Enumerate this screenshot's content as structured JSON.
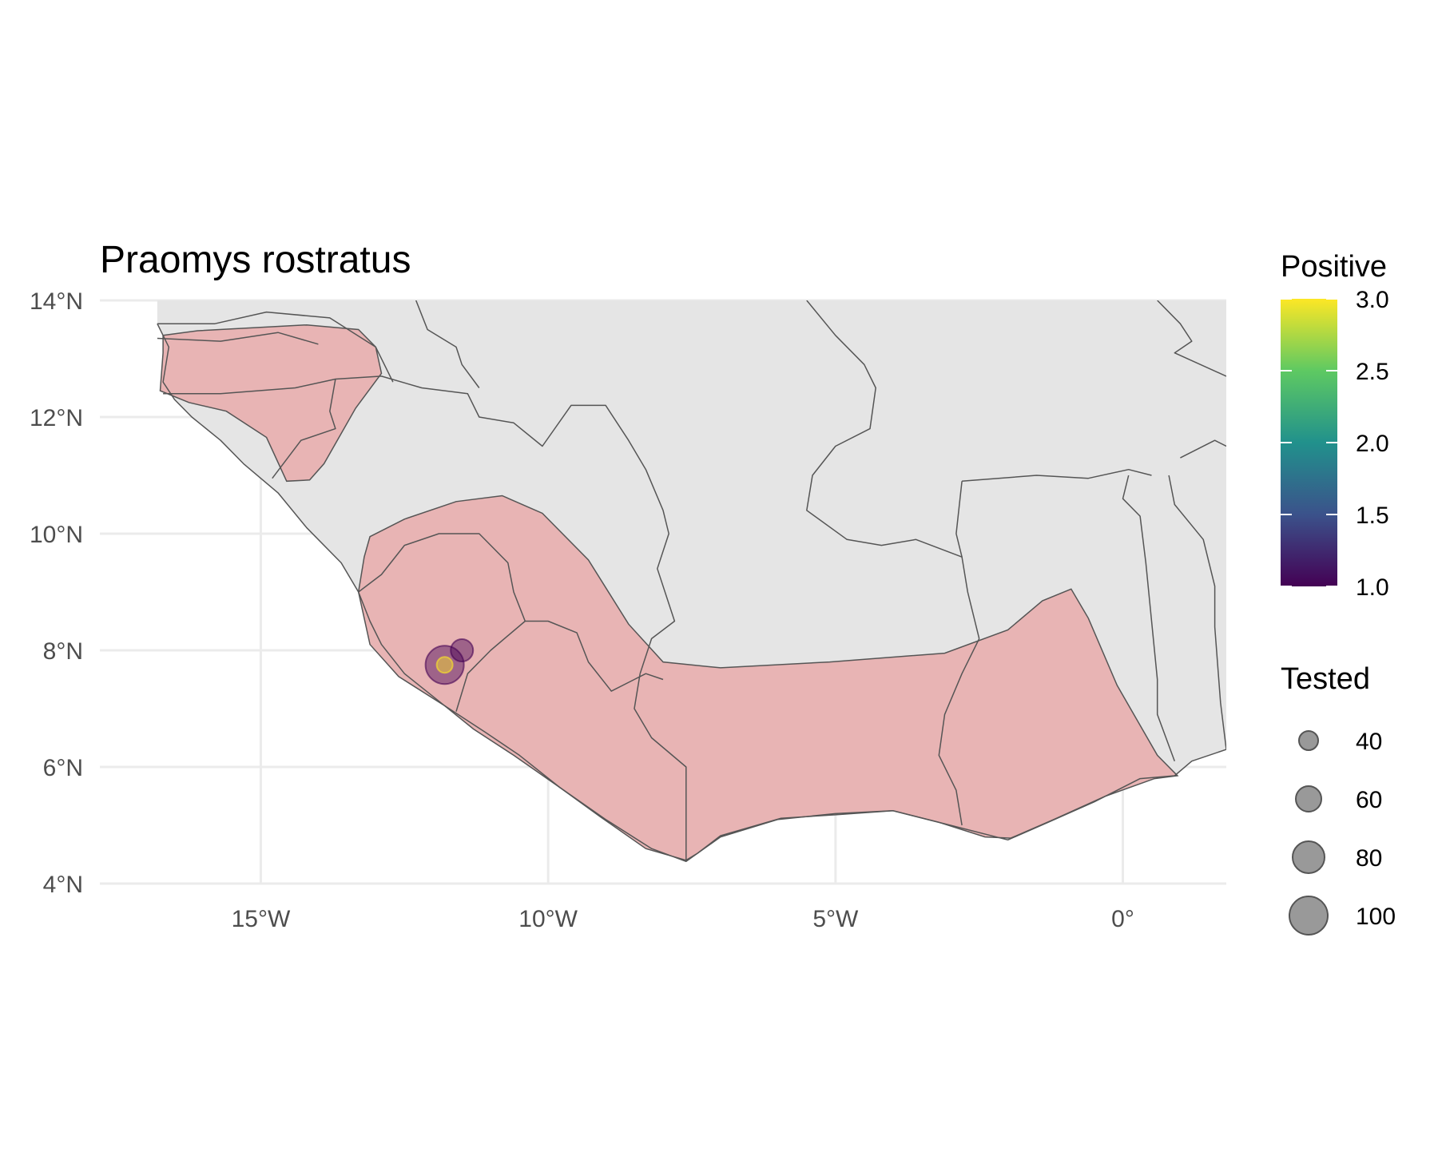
{
  "chart_data": {
    "type": "map",
    "title": "Praomys rostratus",
    "x_axis": {
      "range": [
        -17.8,
        1.8
      ],
      "ticks": [
        {
          "value": -15,
          "label": "15°W"
        },
        {
          "value": -10,
          "label": "10°W"
        },
        {
          "value": -5,
          "label": "5°W"
        },
        {
          "value": 0,
          "label": "0°"
        }
      ]
    },
    "y_axis": {
      "range": [
        4,
        14
      ],
      "ticks": [
        {
          "value": 14,
          "label": "14°N"
        },
        {
          "value": 12,
          "label": "12°N"
        },
        {
          "value": 10,
          "label": "10°N"
        },
        {
          "value": 8,
          "label": "8°N"
        },
        {
          "value": 6,
          "label": "6°N"
        },
        {
          "value": 4,
          "label": "4°N"
        }
      ]
    },
    "grid": true,
    "land_color": "#e5e5e5",
    "border_color": "#555555",
    "range_color": "#e8b4b4",
    "species_range": [
      {
        "name": "west-guinea-senegal",
        "points": [
          [
            -16.7,
            13.4
          ],
          [
            -16.1,
            13.48
          ],
          [
            -14.2,
            13.58
          ],
          [
            -13.3,
            13.5
          ],
          [
            -13.0,
            13.2
          ],
          [
            -12.9,
            12.75
          ],
          [
            -13.35,
            12.15
          ],
          [
            -13.9,
            11.2
          ],
          [
            -14.15,
            10.92
          ],
          [
            -14.55,
            10.9
          ],
          [
            -14.9,
            11.65
          ],
          [
            -15.6,
            12.1
          ],
          [
            -16.25,
            12.25
          ],
          [
            -16.75,
            12.45
          ],
          [
            -16.7,
            13.1
          ]
        ]
      },
      {
        "name": "upper-guinea-forest",
        "points": [
          [
            -13.1,
            9.95
          ],
          [
            -12.5,
            10.25
          ],
          [
            -11.6,
            10.55
          ],
          [
            -10.8,
            10.65
          ],
          [
            -10.1,
            10.35
          ],
          [
            -9.3,
            9.55
          ],
          [
            -8.6,
            8.45
          ],
          [
            -8.0,
            7.8
          ],
          [
            -7.0,
            7.7
          ],
          [
            -5.1,
            7.8
          ],
          [
            -3.1,
            7.95
          ],
          [
            -2.0,
            8.35
          ],
          [
            -1.4,
            8.85
          ],
          [
            -0.9,
            9.05
          ],
          [
            -0.6,
            8.55
          ],
          [
            -0.1,
            7.4
          ],
          [
            0.6,
            6.2
          ],
          [
            0.95,
            5.85
          ],
          [
            0.55,
            5.8
          ],
          [
            -0.3,
            5.5
          ],
          [
            -1.2,
            5.1
          ],
          [
            -1.95,
            4.78
          ],
          [
            -2.4,
            4.8
          ],
          [
            -3.2,
            5.05
          ],
          [
            -4.0,
            5.25
          ],
          [
            -5.0,
            5.18
          ],
          [
            -5.95,
            5.12
          ],
          [
            -7.0,
            4.82
          ],
          [
            -7.4,
            4.52
          ],
          [
            -7.6,
            4.4
          ],
          [
            -8.3,
            4.6
          ],
          [
            -9.1,
            5.15
          ],
          [
            -9.8,
            5.65
          ],
          [
            -10.6,
            6.2
          ],
          [
            -11.3,
            6.65
          ],
          [
            -11.8,
            7.05
          ],
          [
            -12.6,
            7.55
          ],
          [
            -13.1,
            8.1
          ],
          [
            -13.3,
            9.0
          ],
          [
            -13.2,
            9.6
          ]
        ]
      }
    ],
    "countries": [
      {
        "name": "senegal-gambia-guinea-bissau-coast",
        "points": [
          [
            -16.8,
            13.6
          ],
          [
            -16.6,
            13.2
          ],
          [
            -16.7,
            12.6
          ],
          [
            -16.5,
            12.3
          ],
          [
            -16.2,
            12.0
          ],
          [
            -15.7,
            11.6
          ],
          [
            -15.3,
            11.2
          ],
          [
            -14.7,
            10.7
          ],
          [
            -14.2,
            10.1
          ],
          [
            -13.6,
            9.5
          ],
          [
            -13.3,
            9.0
          ],
          [
            -13.1,
            8.5
          ],
          [
            -12.9,
            8.1
          ],
          [
            -12.5,
            7.6
          ],
          [
            -11.8,
            7.05
          ],
          [
            -11.1,
            6.6
          ],
          [
            -10.5,
            6.2
          ],
          [
            -9.8,
            5.65
          ],
          [
            -9.0,
            5.1
          ],
          [
            -8.2,
            4.6
          ],
          [
            -7.6,
            4.38
          ],
          [
            -7.0,
            4.8
          ],
          [
            -6.0,
            5.1
          ],
          [
            -5.0,
            5.2
          ],
          [
            -4.0,
            5.25
          ],
          [
            -3.0,
            5.0
          ],
          [
            -2.0,
            4.75
          ],
          [
            -1.3,
            5.05
          ],
          [
            -0.5,
            5.4
          ],
          [
            0.3,
            5.8
          ],
          [
            0.9,
            5.85
          ],
          [
            1.2,
            6.1
          ],
          [
            1.8,
            6.3
          ]
        ]
      },
      {
        "name": "gambia-north-border",
        "points": [
          [
            -16.8,
            13.6
          ],
          [
            -15.8,
            13.6
          ],
          [
            -14.9,
            13.8
          ],
          [
            -13.8,
            13.7
          ],
          [
            -13.0,
            13.2
          ],
          [
            -12.7,
            12.6
          ]
        ]
      },
      {
        "name": "gambia-south-border",
        "points": [
          [
            -16.8,
            13.35
          ],
          [
            -15.7,
            13.3
          ],
          [
            -14.7,
            13.45
          ],
          [
            -14.0,
            13.25
          ]
        ]
      },
      {
        "name": "guinea-bissau-north",
        "points": [
          [
            -16.7,
            12.4
          ],
          [
            -15.7,
            12.4
          ],
          [
            -14.4,
            12.5
          ],
          [
            -13.7,
            12.65
          ],
          [
            -12.9,
            12.7
          ]
        ]
      },
      {
        "name": "guinea-bissau-east",
        "points": [
          [
            -13.7,
            12.65
          ],
          [
            -13.8,
            12.1
          ],
          [
            -13.7,
            11.8
          ],
          [
            -14.3,
            11.6
          ],
          [
            -14.8,
            10.95
          ]
        ]
      },
      {
        "name": "senegal-mali-guinea",
        "points": [
          [
            -12.9,
            12.7
          ],
          [
            -12.2,
            12.5
          ],
          [
            -11.4,
            12.4
          ],
          [
            -11.2,
            12.0
          ],
          [
            -10.6,
            11.9
          ],
          [
            -10.1,
            11.5
          ],
          [
            -9.6,
            12.2
          ],
          [
            -9.0,
            12.2
          ],
          [
            -8.6,
            11.6
          ],
          [
            -8.3,
            11.1
          ],
          [
            -8.0,
            10.4
          ],
          [
            -7.9,
            10.0
          ],
          [
            -8.1,
            9.4
          ],
          [
            -7.8,
            8.5
          ],
          [
            -8.2,
            8.2
          ],
          [
            -8.4,
            7.6
          ]
        ]
      },
      {
        "name": "mali-inland-north",
        "points": [
          [
            -12.3,
            14.0
          ],
          [
            -12.1,
            13.5
          ],
          [
            -11.6,
            13.2
          ],
          [
            -11.5,
            12.9
          ],
          [
            -11.2,
            12.5
          ]
        ]
      },
      {
        "name": "mali-burkina",
        "points": [
          [
            -5.5,
            14.0
          ],
          [
            -5.0,
            13.4
          ],
          [
            -4.5,
            12.9
          ],
          [
            -4.3,
            12.5
          ],
          [
            -4.4,
            11.8
          ],
          [
            -5.0,
            11.5
          ],
          [
            -5.4,
            11.0
          ],
          [
            -5.5,
            10.4
          ],
          [
            -4.8,
            9.9
          ],
          [
            -4.2,
            9.8
          ],
          [
            -3.6,
            9.9
          ],
          [
            -2.8,
            9.6
          ],
          [
            -2.7,
            9.0
          ],
          [
            -2.5,
            8.2
          ]
        ]
      },
      {
        "name": "burkina-ghana-north",
        "points": [
          [
            -2.8,
            10.9
          ],
          [
            -1.5,
            11.0
          ],
          [
            -0.6,
            10.95
          ],
          [
            0.1,
            11.1
          ],
          [
            0.5,
            11.0
          ]
        ]
      },
      {
        "name": "ghana-west",
        "points": [
          [
            -2.8,
            10.9
          ],
          [
            -2.9,
            10.0
          ],
          [
            -2.8,
            9.6
          ]
        ]
      },
      {
        "name": "ghana-togo",
        "points": [
          [
            0.1,
            11.0
          ],
          [
            0.0,
            10.6
          ],
          [
            0.3,
            10.3
          ],
          [
            0.4,
            9.5
          ],
          [
            0.5,
            8.5
          ],
          [
            0.6,
            7.5
          ],
          [
            0.6,
            6.9
          ],
          [
            0.9,
            6.1
          ]
        ]
      },
      {
        "name": "togo-benin",
        "points": [
          [
            0.8,
            11.0
          ],
          [
            0.9,
            10.5
          ],
          [
            1.4,
            9.9
          ],
          [
            1.6,
            9.1
          ],
          [
            1.6,
            8.4
          ],
          [
            1.7,
            7.1
          ],
          [
            1.8,
            6.3
          ]
        ]
      },
      {
        "name": "benin-niger",
        "points": [
          [
            1.0,
            11.3
          ],
          [
            1.6,
            11.6
          ],
          [
            1.8,
            11.5
          ]
        ]
      },
      {
        "name": "burkina-niger",
        "points": [
          [
            0.6,
            14.0
          ],
          [
            1.0,
            13.6
          ],
          [
            1.2,
            13.3
          ],
          [
            0.9,
            13.1
          ],
          [
            1.8,
            12.7
          ]
        ]
      },
      {
        "name": "sierra-leone-guinea",
        "points": [
          [
            -13.3,
            9.0
          ],
          [
            -12.9,
            9.3
          ],
          [
            -12.5,
            9.8
          ],
          [
            -11.9,
            10.0
          ],
          [
            -11.2,
            10.0
          ],
          [
            -10.7,
            9.5
          ],
          [
            -10.6,
            9.0
          ],
          [
            -10.4,
            8.5
          ],
          [
            -11.0,
            8.0
          ],
          [
            -11.4,
            7.6
          ],
          [
            -11.6,
            6.95
          ]
        ]
      },
      {
        "name": "liberia-guinea",
        "points": [
          [
            -10.4,
            8.5
          ],
          [
            -10.0,
            8.5
          ],
          [
            -9.5,
            8.3
          ],
          [
            -9.3,
            7.8
          ],
          [
            -8.9,
            7.3
          ],
          [
            -8.5,
            7.5
          ],
          [
            -8.3,
            7.6
          ],
          [
            -8.0,
            7.5
          ]
        ]
      },
      {
        "name": "liberia-ivory-coast",
        "points": [
          [
            -8.4,
            7.6
          ],
          [
            -8.5,
            7.0
          ],
          [
            -8.2,
            6.5
          ],
          [
            -7.6,
            6.0
          ],
          [
            -7.6,
            5.5
          ],
          [
            -7.6,
            4.38
          ]
        ]
      },
      {
        "name": "ivory-coast-ghana",
        "points": [
          [
            -2.5,
            8.2
          ],
          [
            -2.8,
            7.6
          ],
          [
            -3.1,
            6.9
          ],
          [
            -3.2,
            6.2
          ],
          [
            -2.9,
            5.6
          ],
          [
            -2.8,
            5.0
          ]
        ]
      }
    ],
    "points": [
      {
        "lon": -11.5,
        "lat": 8.0,
        "tested": 50,
        "positive": 1.0,
        "color": "#440154"
      },
      {
        "lon": -11.8,
        "lat": 7.75,
        "tested": 100,
        "positive": 1.0,
        "color": "#440154"
      },
      {
        "lon": -11.8,
        "lat": 7.75,
        "tested": 30,
        "positive": 3.0,
        "color": "#fde725"
      }
    ],
    "legend_color": {
      "title": "Positive",
      "min": 1.0,
      "max": 3.0,
      "stops": [
        "#440154",
        "#3b528b",
        "#21918c",
        "#5ec962",
        "#fde725"
      ],
      "ticks": [
        {
          "value": 3.0,
          "label": "3.0"
        },
        {
          "value": 2.5,
          "label": "2.5"
        },
        {
          "value": 2.0,
          "label": "2.0"
        },
        {
          "value": 1.5,
          "label": "1.5"
        },
        {
          "value": 1.0,
          "label": "1.0"
        }
      ]
    },
    "legend_size": {
      "title": "Tested",
      "entries": [
        {
          "value": 40,
          "label": "40"
        },
        {
          "value": 60,
          "label": "60"
        },
        {
          "value": 80,
          "label": "80"
        },
        {
          "value": 100,
          "label": "100"
        }
      ],
      "color": "#808080"
    }
  }
}
